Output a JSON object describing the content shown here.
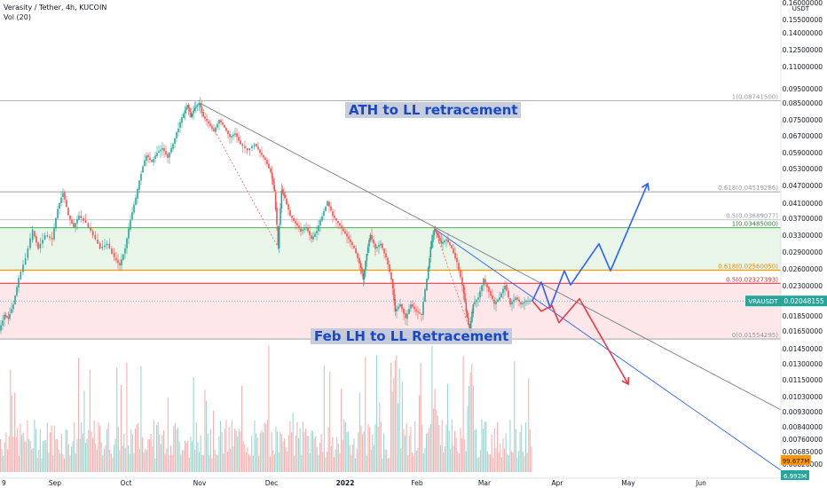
{
  "header": {
    "symbol_line": "Verasity / Tether, 4h, KUCOIN",
    "indicator_line": "Vol (20)"
  },
  "colors": {
    "candle_up": "#26a69a",
    "candle_down": "#ef5350",
    "blue_path": "#2962ff",
    "red_path": "#f23645",
    "green_zone": "#4caf50",
    "red_zone": "#f23645",
    "orange_line": "#ff9800",
    "trendline": "#787b86"
  },
  "annotations": {
    "ath": "ATH to LL retracement",
    "feb": "Feb LH to LL Retracement"
  },
  "chart_data": {
    "type": "candlestick",
    "y_axis": {
      "unit": "USDT",
      "scale": "log",
      "ticks": [
        "0.16000000",
        "0.15500000",
        "0.14000000",
        "0.12500000",
        "0.11000000",
        "0.09500000",
        "0.08500000",
        "0.07500000",
        "0.06700000",
        "0.05900000",
        "0.05300000",
        "0.04700000",
        "0.04100000",
        "0.03700000",
        "0.03300000",
        "0.02900000",
        "0.02600000",
        "0.02300000",
        "0.01850000",
        "0.01650000",
        "0.01450000",
        "0.01300000",
        "0.01150000",
        "0.01030000",
        "0.00930000",
        "0.00840000",
        "0.00760000",
        "0.00685000",
        "0.00620000"
      ]
    },
    "x_axis": {
      "ticks": [
        "9",
        "Sep",
        "Oct",
        "Nov",
        "Dec",
        "2022",
        "Feb",
        "Mar",
        "Apr",
        "May",
        "Jun"
      ]
    },
    "fib_levels": [
      {
        "label": "1(0.08741500)",
        "value": 0.087415
      },
      {
        "label": "0.618(0.04519286)",
        "value": 0.04519286
      },
      {
        "label": "0.5(0.03689077)",
        "value": 0.03689077
      },
      {
        "label": "1(0.03485000)",
        "value": 0.03485
      },
      {
        "label": "0.618(0.02560050)",
        "value": 0.0256005
      },
      {
        "label": "0.5(0.02327393)",
        "value": 0.02327393
      },
      {
        "label": "0(0.01554295)",
        "value": 0.01554295
      }
    ],
    "last_price": {
      "label": "VRAUSDT",
      "value": "0.02048155"
    },
    "volume_labels": [
      "99.677M",
      "6.992M"
    ],
    "price_series": [
      {
        "x": 0,
        "y": 0.0165
      },
      {
        "x": 6,
        "y": 0.0185
      },
      {
        "x": 10,
        "y": 0.018
      },
      {
        "x": 16,
        "y": 0.02
      },
      {
        "x": 22,
        "y": 0.024
      },
      {
        "x": 30,
        "y": 0.028
      },
      {
        "x": 38,
        "y": 0.034
      },
      {
        "x": 44,
        "y": 0.03
      },
      {
        "x": 52,
        "y": 0.033
      },
      {
        "x": 60,
        "y": 0.032
      },
      {
        "x": 66,
        "y": 0.04
      },
      {
        "x": 72,
        "y": 0.045
      },
      {
        "x": 78,
        "y": 0.038
      },
      {
        "x": 84,
        "y": 0.035
      },
      {
        "x": 90,
        "y": 0.038
      },
      {
        "x": 98,
        "y": 0.036
      },
      {
        "x": 106,
        "y": 0.033
      },
      {
        "x": 114,
        "y": 0.03
      },
      {
        "x": 122,
        "y": 0.031
      },
      {
        "x": 130,
        "y": 0.028
      },
      {
        "x": 136,
        "y": 0.0265
      },
      {
        "x": 142,
        "y": 0.03
      },
      {
        "x": 148,
        "y": 0.037
      },
      {
        "x": 154,
        "y": 0.043
      },
      {
        "x": 160,
        "y": 0.052
      },
      {
        "x": 166,
        "y": 0.059
      },
      {
        "x": 172,
        "y": 0.056
      },
      {
        "x": 178,
        "y": 0.06
      },
      {
        "x": 184,
        "y": 0.062
      },
      {
        "x": 190,
        "y": 0.058
      },
      {
        "x": 196,
        "y": 0.064
      },
      {
        "x": 202,
        "y": 0.072
      },
      {
        "x": 208,
        "y": 0.08
      },
      {
        "x": 212,
        "y": 0.085
      },
      {
        "x": 216,
        "y": 0.078
      },
      {
        "x": 220,
        "y": 0.083
      },
      {
        "x": 225,
        "y": 0.086
      },
      {
        "x": 230,
        "y": 0.078
      },
      {
        "x": 236,
        "y": 0.074
      },
      {
        "x": 242,
        "y": 0.07
      },
      {
        "x": 248,
        "y": 0.076
      },
      {
        "x": 254,
        "y": 0.072
      },
      {
        "x": 260,
        "y": 0.067
      },
      {
        "x": 266,
        "y": 0.069
      },
      {
        "x": 272,
        "y": 0.064
      },
      {
        "x": 280,
        "y": 0.061
      },
      {
        "x": 288,
        "y": 0.064
      },
      {
        "x": 294,
        "y": 0.06
      },
      {
        "x": 300,
        "y": 0.057
      },
      {
        "x": 306,
        "y": 0.052
      },
      {
        "x": 310,
        "y": 0.045
      },
      {
        "x": 314,
        "y": 0.03
      },
      {
        "x": 318,
        "y": 0.046
      },
      {
        "x": 322,
        "y": 0.043
      },
      {
        "x": 328,
        "y": 0.038
      },
      {
        "x": 334,
        "y": 0.036
      },
      {
        "x": 340,
        "y": 0.034
      },
      {
        "x": 346,
        "y": 0.035
      },
      {
        "x": 352,
        "y": 0.032
      },
      {
        "x": 358,
        "y": 0.034
      },
      {
        "x": 364,
        "y": 0.038
      },
      {
        "x": 370,
        "y": 0.042
      },
      {
        "x": 376,
        "y": 0.038
      },
      {
        "x": 382,
        "y": 0.036
      },
      {
        "x": 388,
        "y": 0.034
      },
      {
        "x": 394,
        "y": 0.032
      },
      {
        "x": 400,
        "y": 0.03
      },
      {
        "x": 406,
        "y": 0.027
      },
      {
        "x": 410,
        "y": 0.024
      },
      {
        "x": 414,
        "y": 0.029
      },
      {
        "x": 418,
        "y": 0.033
      },
      {
        "x": 424,
        "y": 0.03
      },
      {
        "x": 430,
        "y": 0.031
      },
      {
        "x": 436,
        "y": 0.028
      },
      {
        "x": 442,
        "y": 0.024
      },
      {
        "x": 446,
        "y": 0.019
      },
      {
        "x": 452,
        "y": 0.02
      },
      {
        "x": 458,
        "y": 0.018
      },
      {
        "x": 464,
        "y": 0.02
      },
      {
        "x": 470,
        "y": 0.019
      },
      {
        "x": 476,
        "y": 0.0185
      },
      {
        "x": 482,
        "y": 0.024
      },
      {
        "x": 486,
        "y": 0.03
      },
      {
        "x": 490,
        "y": 0.0345
      },
      {
        "x": 494,
        "y": 0.033
      },
      {
        "x": 498,
        "y": 0.031
      },
      {
        "x": 504,
        "y": 0.032
      },
      {
        "x": 510,
        "y": 0.03
      },
      {
        "x": 516,
        "y": 0.027
      },
      {
        "x": 522,
        "y": 0.023
      },
      {
        "x": 526,
        "y": 0.019
      },
      {
        "x": 530,
        "y": 0.0165
      },
      {
        "x": 534,
        "y": 0.02
      },
      {
        "x": 540,
        "y": 0.021
      },
      {
        "x": 546,
        "y": 0.024
      },
      {
        "x": 552,
        "y": 0.022
      },
      {
        "x": 558,
        "y": 0.02
      },
      {
        "x": 564,
        "y": 0.021
      },
      {
        "x": 570,
        "y": 0.023
      },
      {
        "x": 576,
        "y": 0.02
      },
      {
        "x": 582,
        "y": 0.021
      },
      {
        "x": 588,
        "y": 0.02
      },
      {
        "x": 594,
        "y": 0.0205
      },
      {
        "x": 600,
        "y": 0.0205
      }
    ],
    "projection_up": [
      {
        "x": 600,
        "y": 0.0205
      },
      {
        "x": 610,
        "y": 0.0235
      },
      {
        "x": 620,
        "y": 0.0195
      },
      {
        "x": 636,
        "y": 0.0255
      },
      {
        "x": 643,
        "y": 0.023
      },
      {
        "x": 675,
        "y": 0.031
      },
      {
        "x": 688,
        "y": 0.0255
      },
      {
        "x": 730,
        "y": 0.048
      }
    ],
    "projection_down": [
      {
        "x": 600,
        "y": 0.0205
      },
      {
        "x": 610,
        "y": 0.019
      },
      {
        "x": 622,
        "y": 0.0198
      },
      {
        "x": 630,
        "y": 0.0175
      },
      {
        "x": 653,
        "y": 0.0208
      },
      {
        "x": 708,
        "y": 0.0112
      }
    ],
    "trendlines": [
      {
        "name": "ath-trendline",
        "points": [
          {
            "x": 225,
            "y": 0.086
          },
          {
            "x": 880,
            "y": 0.0093
          }
        ]
      },
      {
        "name": "feb-trendline",
        "points": [
          {
            "x": 490,
            "y": 0.0345
          },
          {
            "x": 880,
            "y": 0.006
          }
        ]
      }
    ]
  }
}
